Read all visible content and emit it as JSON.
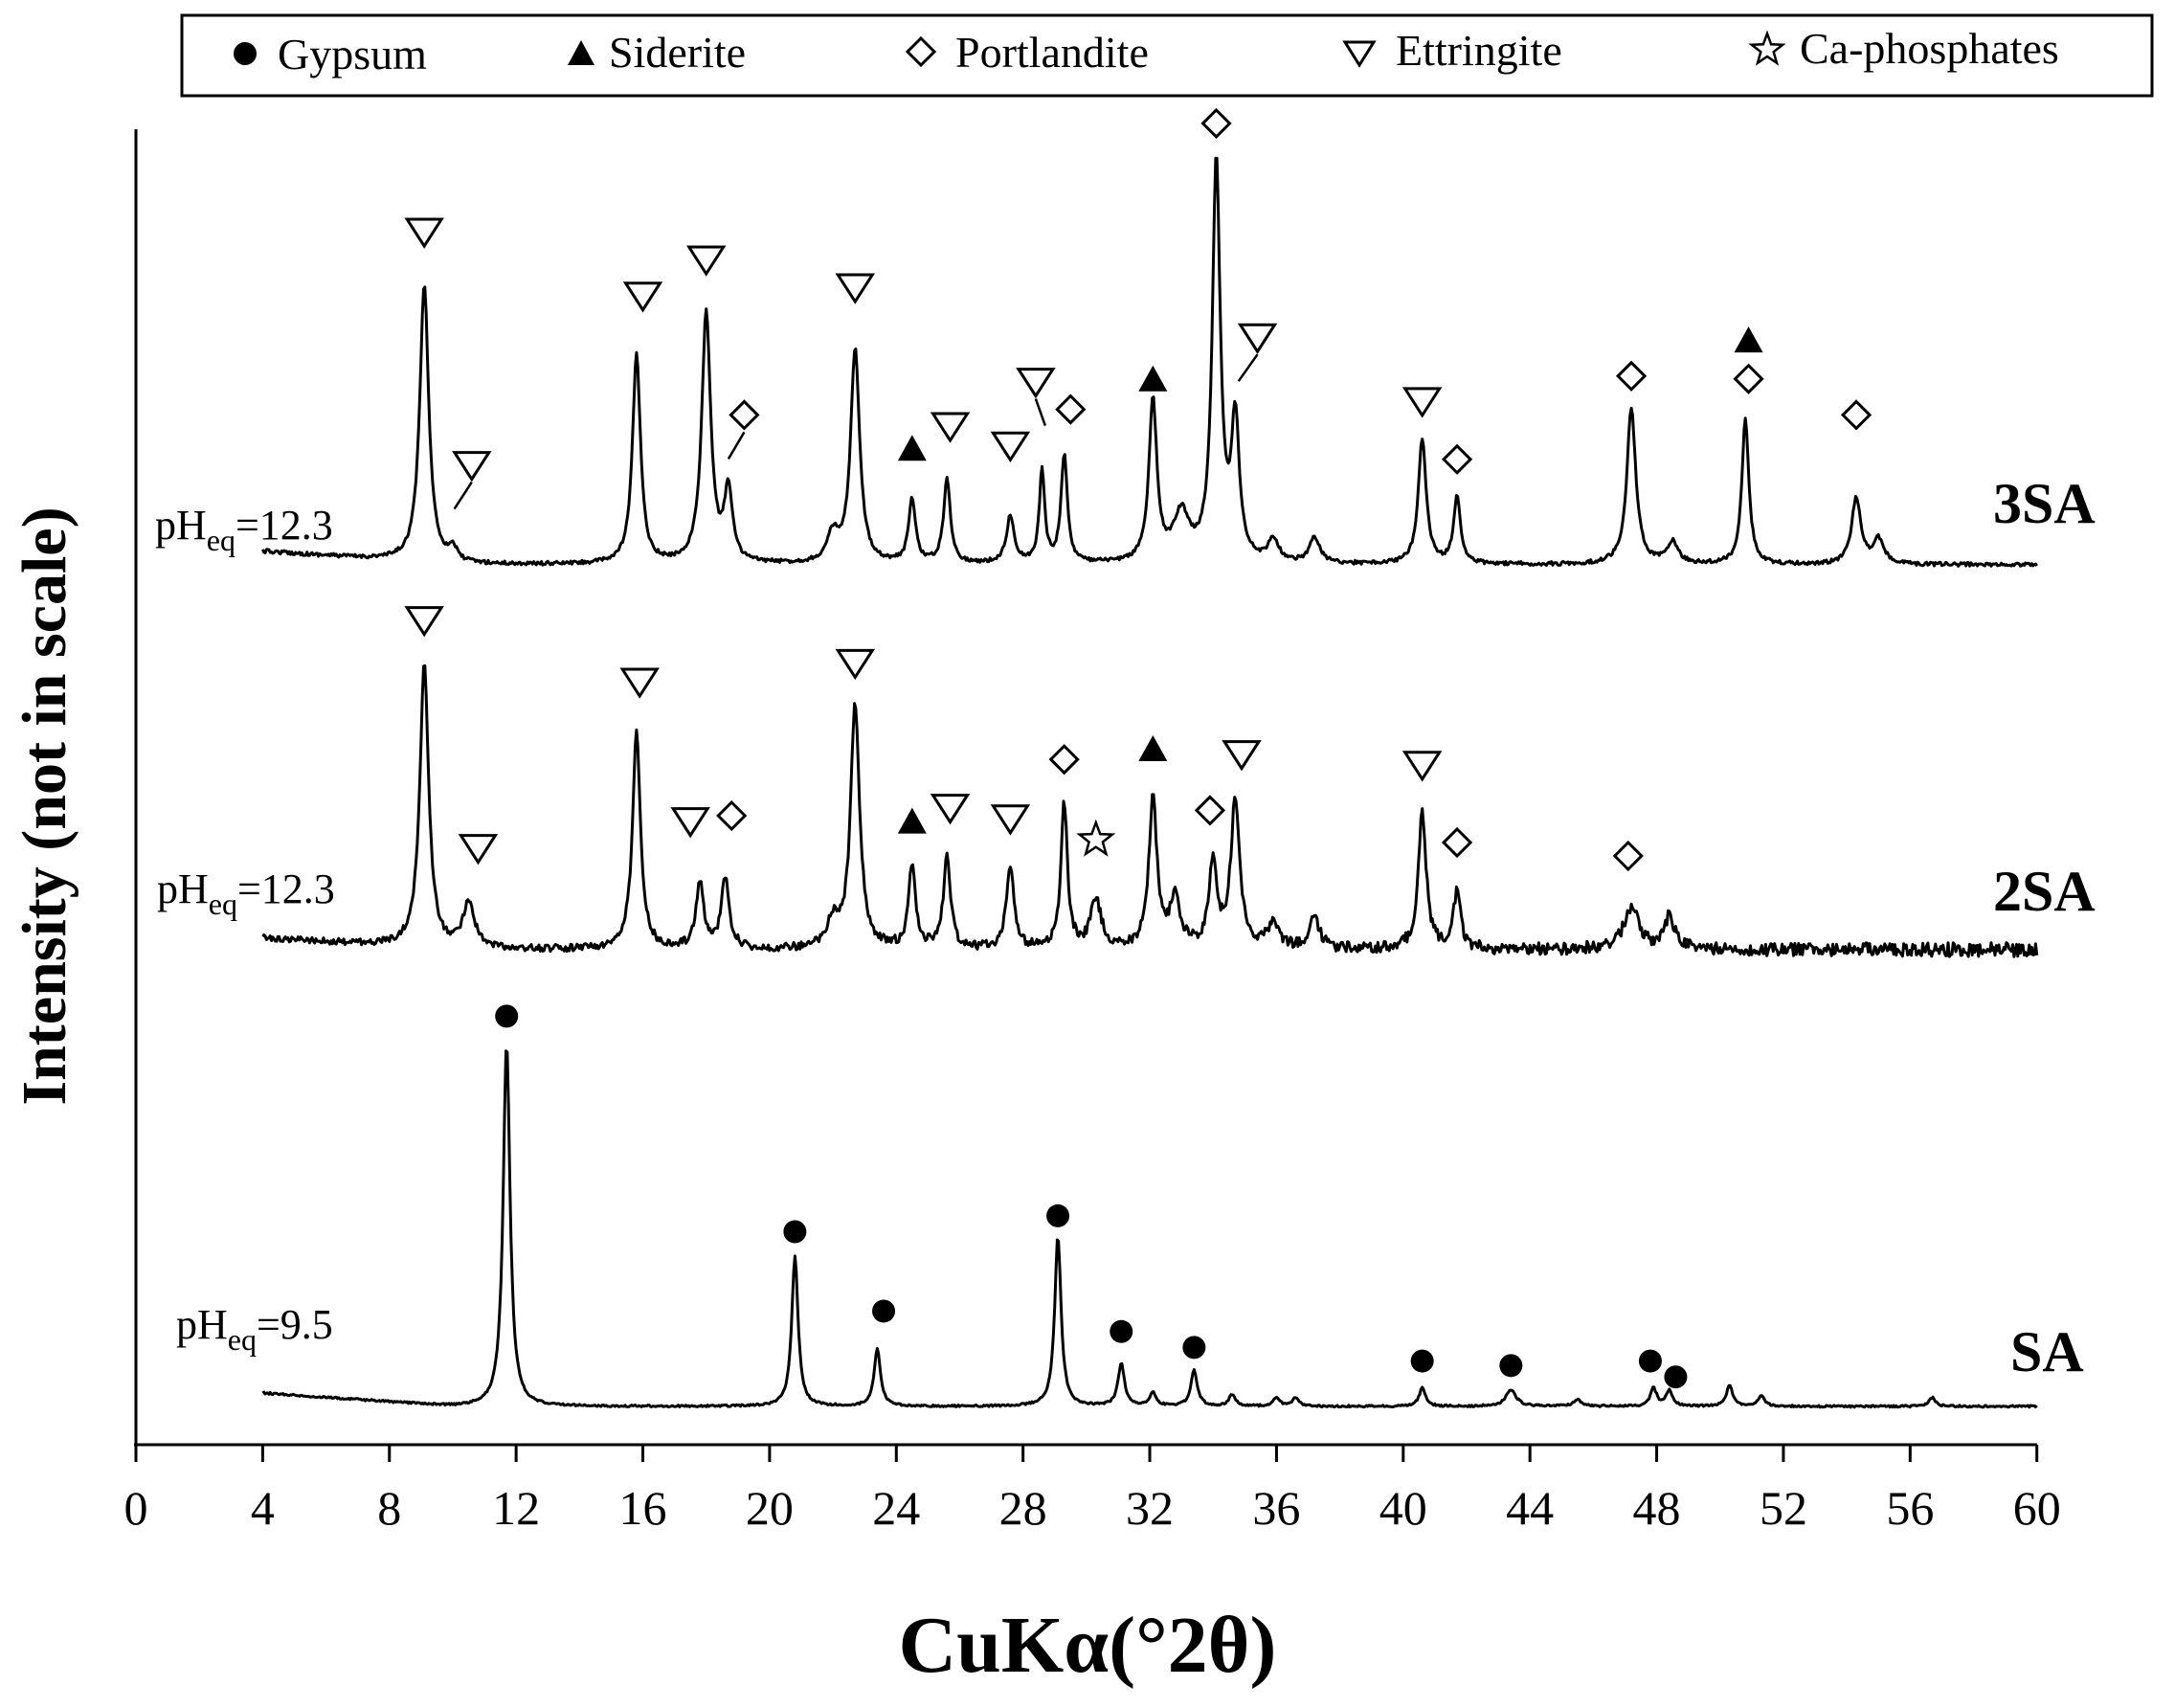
{
  "chart_data": {
    "type": "line",
    "title": "",
    "xlabel": "CuKα(°2θ)",
    "ylabel": "Intensity (not in scale)",
    "xlim": [
      0,
      60
    ],
    "x_ticks": [
      0,
      4,
      8,
      12,
      16,
      20,
      24,
      28,
      32,
      36,
      40,
      44,
      48,
      52,
      56,
      60
    ],
    "grid": false,
    "legend": {
      "placement": "top",
      "entries": [
        {
          "name": "Gypsum",
          "marker": "filled-circle"
        },
        {
          "name": "Siderite",
          "marker": "filled-triangle-up"
        },
        {
          "name": "Portlandite",
          "marker": "open-diamond"
        },
        {
          "name": "Ettringite",
          "marker": "open-triangle-down"
        },
        {
          "name": "Ca-phosphates",
          "marker": "open-star"
        }
      ]
    },
    "series": [
      {
        "name": "3SA",
        "ph_prefix": "pH",
        "ph_sub": "eq",
        "ph_value": "=12.3",
        "x_range": [
          4,
          60
        ],
        "peaks": [
          {
            "x": 9.1,
            "h": 1.0,
            "w": 0.17
          },
          {
            "x": 10.0,
            "h": 0.05,
            "w": 0.15
          },
          {
            "x": 15.8,
            "h": 0.76,
            "w": 0.15
          },
          {
            "x": 18.0,
            "h": 0.9,
            "w": 0.17
          },
          {
            "x": 18.7,
            "h": 0.26,
            "w": 0.15
          },
          {
            "x": 22.0,
            "h": 0.1,
            "w": 0.2
          },
          {
            "x": 22.7,
            "h": 0.77,
            "w": 0.17
          },
          {
            "x": 24.5,
            "h": 0.23,
            "w": 0.13
          },
          {
            "x": 25.6,
            "h": 0.3,
            "w": 0.13
          },
          {
            "x": 27.6,
            "h": 0.17,
            "w": 0.15
          },
          {
            "x": 28.6,
            "h": 0.34,
            "w": 0.1
          },
          {
            "x": 29.3,
            "h": 0.39,
            "w": 0.12
          },
          {
            "x": 32.1,
            "h": 0.58,
            "w": 0.15
          },
          {
            "x": 33.0,
            "h": 0.17,
            "w": 0.3
          },
          {
            "x": 34.1,
            "h": 1.44,
            "w": 0.15
          },
          {
            "x": 34.7,
            "h": 0.5,
            "w": 0.15
          },
          {
            "x": 35.9,
            "h": 0.08,
            "w": 0.2
          },
          {
            "x": 37.2,
            "h": 0.09,
            "w": 0.2
          },
          {
            "x": 40.6,
            "h": 0.45,
            "w": 0.15
          },
          {
            "x": 41.7,
            "h": 0.24,
            "w": 0.13
          },
          {
            "x": 47.2,
            "h": 0.56,
            "w": 0.17
          },
          {
            "x": 48.5,
            "h": 0.08,
            "w": 0.2
          },
          {
            "x": 50.8,
            "h": 0.53,
            "w": 0.13
          },
          {
            "x": 54.3,
            "h": 0.24,
            "w": 0.17
          },
          {
            "x": 55.0,
            "h": 0.09,
            "w": 0.2
          }
        ],
        "markers": [
          {
            "type": "ettringite",
            "x": 9.1,
            "level": 1.2
          },
          {
            "type": "ettringite",
            "x": 10.6,
            "level": 0.36,
            "leader_x": 10.05
          },
          {
            "type": "ettringite",
            "x": 16.0,
            "level": 0.97
          },
          {
            "type": "ettringite",
            "x": 18.0,
            "level": 1.1
          },
          {
            "type": "portlandite",
            "x": 19.2,
            "level": 0.54,
            "leader_x": 18.7
          },
          {
            "type": "ettringite",
            "x": 22.7,
            "level": 1.0
          },
          {
            "type": "siderite",
            "x": 24.5,
            "level": 0.42
          },
          {
            "type": "ettringite",
            "x": 25.7,
            "level": 0.5
          },
          {
            "type": "ettringite",
            "x": 27.6,
            "level": 0.43
          },
          {
            "type": "ettringite",
            "x": 28.4,
            "level": 0.66,
            "leader_x": 28.7
          },
          {
            "type": "portlandite",
            "x": 29.5,
            "level": 0.56
          },
          {
            "type": "siderite",
            "x": 32.1,
            "level": 0.67
          },
          {
            "type": "portlandite",
            "x": 34.1,
            "level": 1.59
          },
          {
            "type": "ettringite",
            "x": 35.4,
            "level": 0.82,
            "leader_x": 34.8
          },
          {
            "type": "ettringite",
            "x": 40.6,
            "level": 0.59
          },
          {
            "type": "portlandite",
            "x": 41.7,
            "level": 0.38
          },
          {
            "type": "portlandite",
            "x": 47.2,
            "level": 0.68
          },
          {
            "type": "siderite",
            "x": 50.9,
            "level": 0.81
          },
          {
            "type": "portlandite",
            "x": 50.9,
            "level": 0.67
          },
          {
            "type": "portlandite",
            "x": 54.3,
            "level": 0.54
          }
        ]
      },
      {
        "name": "2SA",
        "ph_prefix": "pH",
        "ph_sub": "eq",
        "ph_value": "=12.3",
        "x_range": [
          4,
          60
        ],
        "peaks": [
          {
            "x": 9.1,
            "h": 1.05,
            "w": 0.17
          },
          {
            "x": 10.5,
            "h": 0.17,
            "w": 0.22
          },
          {
            "x": 15.8,
            "h": 0.81,
            "w": 0.15
          },
          {
            "x": 17.8,
            "h": 0.24,
            "w": 0.15
          },
          {
            "x": 18.6,
            "h": 0.26,
            "w": 0.15
          },
          {
            "x": 22.0,
            "h": 0.1,
            "w": 0.2
          },
          {
            "x": 22.7,
            "h": 0.91,
            "w": 0.17
          },
          {
            "x": 24.5,
            "h": 0.31,
            "w": 0.13
          },
          {
            "x": 25.6,
            "h": 0.35,
            "w": 0.13
          },
          {
            "x": 27.6,
            "h": 0.29,
            "w": 0.15
          },
          {
            "x": 29.3,
            "h": 0.54,
            "w": 0.12
          },
          {
            "x": 30.3,
            "h": 0.18,
            "w": 0.2
          },
          {
            "x": 32.1,
            "h": 0.56,
            "w": 0.15
          },
          {
            "x": 32.8,
            "h": 0.18,
            "w": 0.2
          },
          {
            "x": 34.0,
            "h": 0.32,
            "w": 0.15
          },
          {
            "x": 34.7,
            "h": 0.55,
            "w": 0.17
          },
          {
            "x": 35.9,
            "h": 0.1,
            "w": 0.2
          },
          {
            "x": 37.2,
            "h": 0.11,
            "w": 0.2
          },
          {
            "x": 40.6,
            "h": 0.51,
            "w": 0.15
          },
          {
            "x": 41.7,
            "h": 0.22,
            "w": 0.13
          },
          {
            "x": 47.2,
            "h": 0.15,
            "w": 0.3
          },
          {
            "x": 48.4,
            "h": 0.12,
            "w": 0.2
          }
        ],
        "markers": [
          {
            "type": "ettringite",
            "x": 9.1,
            "level": 1.23
          },
          {
            "type": "ettringite",
            "x": 10.8,
            "level": 0.38
          },
          {
            "type": "ettringite",
            "x": 15.9,
            "level": 1.0
          },
          {
            "type": "ettringite",
            "x": 17.5,
            "level": 0.48
          },
          {
            "type": "portlandite",
            "x": 18.8,
            "level": 0.5
          },
          {
            "type": "ettringite",
            "x": 22.7,
            "level": 1.07
          },
          {
            "type": "siderite",
            "x": 24.5,
            "level": 0.48
          },
          {
            "type": "ettringite",
            "x": 25.7,
            "level": 0.53
          },
          {
            "type": "ettringite",
            "x": 27.6,
            "level": 0.49
          },
          {
            "type": "portlandite",
            "x": 29.3,
            "level": 0.71
          },
          {
            "type": "ca-phosphate",
            "x": 30.3,
            "level": 0.41
          },
          {
            "type": "siderite",
            "x": 32.1,
            "level": 0.75
          },
          {
            "type": "portlandite",
            "x": 33.9,
            "level": 0.52
          },
          {
            "type": "ettringite",
            "x": 34.9,
            "level": 0.73
          },
          {
            "type": "ettringite",
            "x": 40.6,
            "level": 0.69
          },
          {
            "type": "portlandite",
            "x": 41.7,
            "level": 0.4
          },
          {
            "type": "portlandite",
            "x": 47.1,
            "level": 0.35
          }
        ]
      },
      {
        "name": "SA",
        "ph_prefix": "pH",
        "ph_sub": "eq",
        "ph_value": "=9.5",
        "x_range": [
          4,
          60
        ],
        "peaks": [
          {
            "x": 11.7,
            "h": 1.6,
            "w": 0.13
          },
          {
            "x": 20.8,
            "h": 0.66,
            "w": 0.12
          },
          {
            "x": 23.4,
            "h": 0.25,
            "w": 0.12
          },
          {
            "x": 29.1,
            "h": 0.75,
            "w": 0.12
          },
          {
            "x": 31.1,
            "h": 0.19,
            "w": 0.12
          },
          {
            "x": 32.1,
            "h": 0.06,
            "w": 0.12
          },
          {
            "x": 33.4,
            "h": 0.16,
            "w": 0.12
          },
          {
            "x": 34.6,
            "h": 0.05,
            "w": 0.12
          },
          {
            "x": 36.0,
            "h": 0.04,
            "w": 0.12
          },
          {
            "x": 36.6,
            "h": 0.04,
            "w": 0.12
          },
          {
            "x": 40.6,
            "h": 0.08,
            "w": 0.12
          },
          {
            "x": 43.4,
            "h": 0.07,
            "w": 0.2
          },
          {
            "x": 45.5,
            "h": 0.03,
            "w": 0.15
          },
          {
            "x": 47.9,
            "h": 0.08,
            "w": 0.12
          },
          {
            "x": 48.4,
            "h": 0.07,
            "w": 0.12
          },
          {
            "x": 50.3,
            "h": 0.09,
            "w": 0.12
          },
          {
            "x": 51.3,
            "h": 0.05,
            "w": 0.12
          },
          {
            "x": 56.7,
            "h": 0.04,
            "w": 0.12
          }
        ],
        "markers": [
          {
            "type": "gypsum",
            "x": 11.7,
            "level": 1.72
          },
          {
            "type": "gypsum",
            "x": 20.8,
            "level": 0.77
          },
          {
            "type": "gypsum",
            "x": 23.6,
            "level": 0.42
          },
          {
            "type": "gypsum",
            "x": 29.1,
            "level": 0.84
          },
          {
            "type": "gypsum",
            "x": 31.1,
            "level": 0.33
          },
          {
            "type": "gypsum",
            "x": 33.4,
            "level": 0.26
          },
          {
            "type": "gypsum",
            "x": 40.6,
            "level": 0.2
          },
          {
            "type": "gypsum",
            "x": 43.4,
            "level": 0.18
          },
          {
            "type": "gypsum",
            "x": 47.8,
            "level": 0.2
          },
          {
            "type": "gypsum",
            "x": 48.6,
            "level": 0.13
          }
        ]
      }
    ]
  },
  "colors": {
    "line": "#000000",
    "background": "#ffffff"
  }
}
